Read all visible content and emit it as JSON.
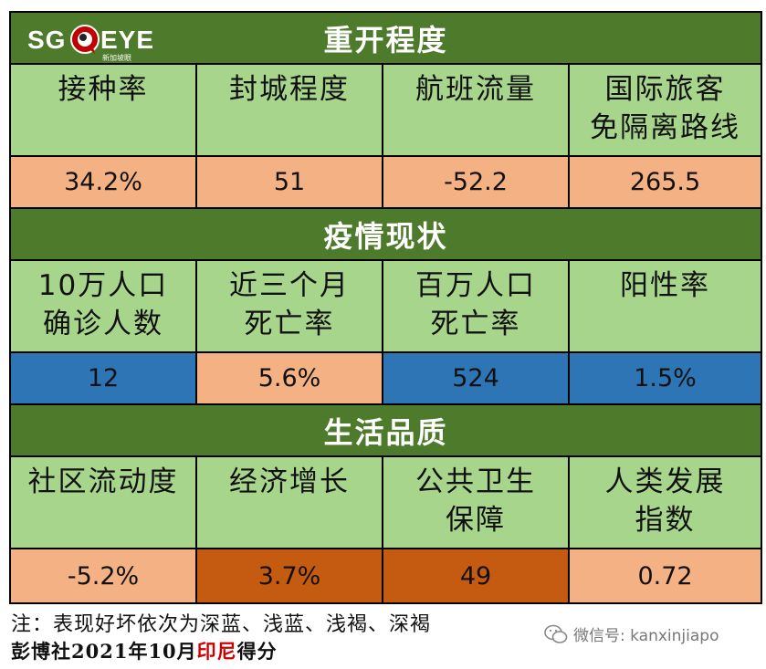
{
  "logo": {
    "left": "SG",
    "right": "EYE",
    "sub": "新加坡眼"
  },
  "sections": [
    {
      "title": "重开程度",
      "headers": [
        [
          "接种率"
        ],
        [
          "封城程度"
        ],
        [
          "航班流量"
        ],
        [
          "国际旅客",
          "免隔离路线"
        ]
      ],
      "values": [
        "34.2%",
        "51",
        "-52.2",
        "265.5"
      ],
      "value_level": [
        "light-brown",
        "light-brown",
        "light-brown",
        "light-brown"
      ]
    },
    {
      "title": "疫情现状",
      "headers": [
        [
          "10万人口",
          "确诊人数"
        ],
        [
          "近三个月",
          "死亡率"
        ],
        [
          "百万人口",
          "死亡率"
        ],
        [
          "阳性率"
        ]
      ],
      "values": [
        "12",
        "5.6%",
        "524",
        "1.5%"
      ],
      "value_level": [
        "light-blue",
        "light-brown",
        "light-blue",
        "light-blue"
      ]
    },
    {
      "title": "生活品质",
      "headers": [
        [
          "社区流动度"
        ],
        [
          "经济增长"
        ],
        [
          "公共卫生",
          "保障"
        ],
        [
          "人类发展",
          "指数"
        ]
      ],
      "values": [
        "-5.2%",
        "3.7%",
        "49",
        "0.72"
      ],
      "value_level": [
        "light-brown",
        "dark-brown",
        "dark-brown",
        "light-brown"
      ]
    }
  ],
  "footer": {
    "note": "注：表现好坏依次为深蓝、浅蓝、浅褐、深褐",
    "source_prefix": "彭博社2021年10月",
    "source_country": "印尼",
    "source_suffix": "得分"
  },
  "watermark": {
    "text": "微信号: kanxinjiapo",
    "icon": "wechat-icon"
  },
  "colors": {
    "section_bg": "#4e7a2b",
    "header_bg": "#a8d58c",
    "light_brown": "#f4b183",
    "light_blue": "#2e75b6",
    "dark_brown": "#c55a11"
  }
}
